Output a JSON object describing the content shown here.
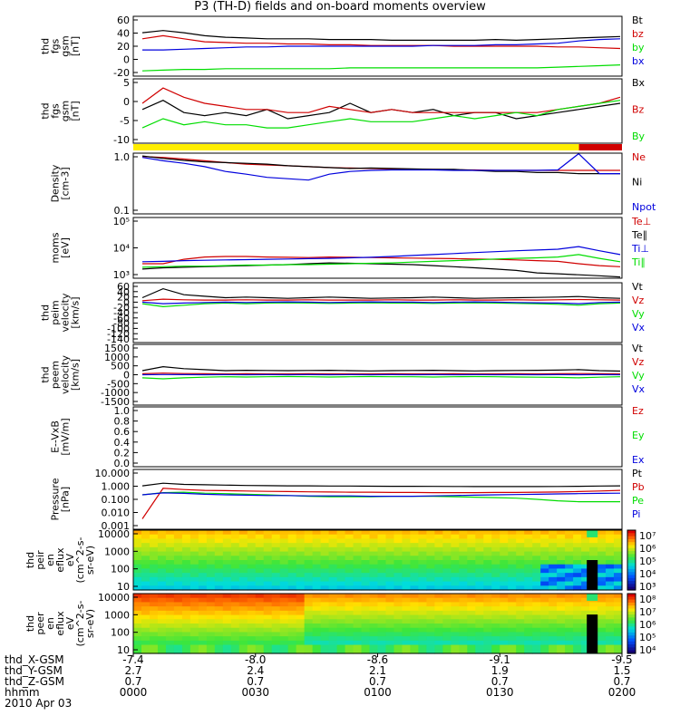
{
  "title": "P3 (TH-D) fields and on-board moments overview",
  "colors": {
    "black": "#000000",
    "red": "#d00000",
    "green": "#00dd00",
    "blue": "#0000dd",
    "yellow": "#ffee00"
  },
  "chart_data": [
    {
      "type": "line",
      "ylabel": [
        "thd",
        "fgs",
        "gsm",
        "[nT]"
      ],
      "yticks": [
        "60",
        "40",
        "20",
        "0",
        "-20"
      ],
      "ylim": [
        -20,
        60
      ],
      "series": [
        {
          "name": "Bt",
          "color": "black",
          "values": [
            38,
            41,
            38,
            34,
            32,
            31,
            30,
            30,
            30,
            29,
            29,
            29,
            28,
            28,
            28,
            28,
            28,
            29,
            28,
            29,
            30,
            31,
            32,
            33
          ]
        },
        {
          "name": "bz",
          "color": "red",
          "values": [
            30,
            34,
            30,
            26,
            25,
            24,
            24,
            23,
            23,
            22,
            22,
            21,
            21,
            21,
            21,
            20,
            20,
            20,
            20,
            20,
            19,
            19,
            18,
            17
          ]
        },
        {
          "name": "by",
          "color": "green",
          "values": [
            -13,
            -12,
            -11,
            -11,
            -10,
            -10,
            -10,
            -10,
            -10,
            -10,
            -9,
            -9,
            -9,
            -9,
            -9,
            -9,
            -9,
            -9,
            -9,
            -9,
            -8,
            -7,
            -6,
            -5
          ]
        },
        {
          "name": "bx",
          "color": "blue",
          "values": [
            15,
            15,
            16,
            17,
            18,
            19,
            19,
            20,
            20,
            20,
            20,
            20,
            20,
            20,
            21,
            21,
            21,
            22,
            22,
            23,
            24,
            27,
            29,
            30
          ]
        }
      ]
    },
    {
      "type": "line",
      "ylabel": [
        "thd",
        "fgs",
        "gsm",
        "[nT]"
      ],
      "yticks": [
        "5",
        "0",
        "-5",
        "-10"
      ],
      "ylim": [
        -13,
        8
      ],
      "series": [
        {
          "name": "Bx",
          "color": "black",
          "values": [
            -2,
            1,
            -3,
            -4,
            -3,
            -4,
            -2,
            -5,
            -4,
            -3,
            0,
            -3,
            -2,
            -3,
            -2,
            -4,
            -3,
            -3,
            -5,
            -4,
            -3,
            -2,
            -1,
            0
          ]
        },
        {
          "name": "Bz",
          "color": "red",
          "values": [
            0,
            5,
            2,
            0,
            -1,
            -2,
            -2,
            -3,
            -3,
            -1,
            -2,
            -3,
            -2,
            -3,
            -3,
            -3,
            -3,
            -3,
            -3,
            -3,
            -2,
            -1,
            0,
            2
          ]
        },
        {
          "name": "By",
          "color": "green",
          "values": [
            -8,
            -5,
            -7,
            -6,
            -7,
            -7,
            -8,
            -8,
            -7,
            -6,
            -5,
            -6,
            -6,
            -6,
            -5,
            -4,
            -5,
            -4,
            -3,
            -4,
            -2,
            -1,
            0,
            1
          ]
        }
      ]
    },
    {
      "type": "line",
      "ylabel": [
        "Density",
        "[cm-3]"
      ],
      "yticks": [
        "1.0",
        "0.1"
      ],
      "ylim": [
        0.1,
        1.0
      ],
      "ylog": true,
      "series": [
        {
          "name": "Ne",
          "color": "red",
          "values": [
            0.88,
            0.85,
            0.8,
            0.75,
            0.7,
            0.66,
            0.64,
            0.62,
            0.6,
            0.58,
            0.57,
            0.56,
            0.55,
            0.54,
            0.54,
            0.53,
            0.53,
            0.52,
            0.52,
            0.52,
            0.52,
            0.52,
            0.52,
            0.52
          ]
        },
        {
          "name": "Ni",
          "color": "black",
          "values": [
            0.9,
            0.82,
            0.76,
            0.72,
            0.7,
            0.68,
            0.66,
            0.62,
            0.6,
            0.58,
            0.56,
            0.57,
            0.56,
            0.55,
            0.54,
            0.54,
            0.52,
            0.5,
            0.5,
            0.48,
            0.48,
            0.46,
            0.46,
            0.46
          ]
        },
        {
          "name": "Npot",
          "color": "blue",
          "values": [
            0.85,
            0.75,
            0.68,
            0.6,
            0.5,
            0.45,
            0.4,
            0.38,
            0.36,
            0.45,
            0.5,
            0.52,
            0.53,
            0.53,
            0.53,
            0.52,
            0.52,
            0.52,
            0.52,
            0.52,
            0.53,
            0.98,
            0.46,
            0.46
          ]
        }
      ]
    },
    {
      "type": "line",
      "ylabel": [
        "moms",
        "[eV]"
      ],
      "yticks": [
        "10⁵",
        "10⁴",
        "10³"
      ],
      "ylim": [
        1000,
        100000
      ],
      "ylog": true,
      "series": [
        {
          "name": "Te⊥",
          "color": "red",
          "values": [
            3000,
            3000,
            4200,
            5000,
            5200,
            5200,
            5000,
            4900,
            4800,
            5000,
            4900,
            4800,
            4700,
            4600,
            4500,
            4400,
            4300,
            4200,
            4000,
            3800,
            3600,
            3000,
            2600,
            2400
          ]
        },
        {
          "name": "Te∥",
          "color": "black",
          "values": [
            2000,
            2200,
            2300,
            2400,
            2500,
            2600,
            2700,
            2800,
            3000,
            3200,
            3100,
            3000,
            2900,
            2800,
            2600,
            2400,
            2200,
            2000,
            1800,
            1500,
            1400,
            1300,
            1200,
            1100
          ]
        },
        {
          "name": "Ti⊥",
          "color": "blue",
          "values": [
            3500,
            3600,
            3800,
            3900,
            4000,
            4100,
            4200,
            4300,
            4400,
            4500,
            4700,
            4900,
            5200,
            5600,
            6000,
            6500,
            7000,
            7500,
            8000,
            8500,
            9000,
            11000,
            8000,
            6000
          ]
        },
        {
          "name": "Ti∥",
          "color": "green",
          "values": [
            2300,
            2400,
            2500,
            2500,
            2600,
            2700,
            2700,
            2800,
            2800,
            2900,
            3000,
            3100,
            3200,
            3400,
            3600,
            3800,
            4000,
            4300,
            4500,
            4700,
            5000,
            6000,
            4500,
            3500
          ]
        }
      ]
    },
    {
      "type": "line",
      "ylabel": [
        "thd",
        "peim",
        "velocity",
        "[km/s]"
      ],
      "yticks": [
        "60",
        "40",
        "20",
        "0",
        "-20",
        "-40",
        "-60",
        "-80",
        "-100",
        "-120",
        "-140"
      ],
      "ylim": [
        -140,
        60
      ],
      "series": [
        {
          "name": "Vt",
          "color": "black",
          "values": [
            10,
            40,
            20,
            15,
            10,
            12,
            10,
            8,
            10,
            12,
            10,
            8,
            9,
            10,
            12,
            10,
            8,
            9,
            10,
            11,
            12,
            14,
            10,
            8
          ]
        },
        {
          "name": "Vz",
          "color": "red",
          "values": [
            0,
            5,
            3,
            2,
            2,
            3,
            2,
            2,
            3,
            2,
            2,
            2,
            3,
            2,
            2,
            3,
            2,
            2,
            3,
            2,
            3,
            4,
            3,
            2
          ]
        },
        {
          "name": "Vy",
          "color": "green",
          "values": [
            -10,
            -20,
            -15,
            -10,
            -8,
            -10,
            -8,
            -7,
            -8,
            -9,
            -8,
            -7,
            -8,
            -8,
            -9,
            -8,
            -7,
            -8,
            -9,
            -10,
            -12,
            -15,
            -10,
            -8
          ]
        },
        {
          "name": "Vx",
          "color": "blue",
          "values": [
            -5,
            -10,
            -8,
            -6,
            -5,
            -6,
            -5,
            -4,
            -5,
            -6,
            -5,
            -4,
            -5,
            -5,
            -6,
            -5,
            -4,
            -5,
            -6,
            -7,
            -8,
            -10,
            -6,
            -5
          ]
        }
      ]
    },
    {
      "type": "line",
      "ylabel": [
        "thd",
        "peem",
        "velocity",
        "[km/s]"
      ],
      "yticks": [
        "1500",
        "1000",
        "500",
        "0",
        "-500",
        "-1000",
        "-1500"
      ],
      "ylim": [
        -1500,
        1500
      ],
      "series": [
        {
          "name": "Vt",
          "color": "black",
          "values": [
            200,
            400,
            300,
            250,
            200,
            220,
            210,
            200,
            210,
            220,
            200,
            190,
            200,
            210,
            220,
            200,
            190,
            200,
            210,
            220,
            230,
            250,
            200,
            180
          ]
        },
        {
          "name": "Vz",
          "color": "red",
          "values": [
            50,
            80,
            60,
            50,
            40,
            50,
            40,
            40,
            50,
            40,
            40,
            40,
            50,
            40,
            40,
            50,
            40,
            40,
            50,
            40,
            50,
            60,
            50,
            40
          ]
        },
        {
          "name": "Vy",
          "color": "green",
          "values": [
            -150,
            -200,
            -150,
            -120,
            -100,
            -110,
            -100,
            -90,
            -100,
            -110,
            -100,
            -90,
            -100,
            -100,
            -110,
            -100,
            -90,
            -100,
            -110,
            -120,
            -130,
            -150,
            -120,
            -100
          ]
        },
        {
          "name": "Vx",
          "color": "blue",
          "values": [
            0,
            10,
            5,
            0,
            5,
            0,
            5,
            0,
            5,
            0,
            5,
            0,
            5,
            0,
            5,
            0,
            5,
            0,
            5,
            0,
            5,
            0,
            5,
            0
          ]
        }
      ]
    },
    {
      "type": "line",
      "ylabel": [
        "E--VxB",
        "[mV/m]"
      ],
      "yticks": [
        "1.0",
        "0.8",
        "0.6",
        "0.4",
        "0.2",
        "0.0"
      ],
      "ylim": [
        0,
        1
      ],
      "series": [
        {
          "name": "Ez",
          "color": "red",
          "values": []
        },
        {
          "name": "Ey",
          "color": "green",
          "values": []
        },
        {
          "name": "Ex",
          "color": "blue",
          "values": []
        }
      ]
    },
    {
      "type": "line",
      "ylabel": [
        "Pressure",
        "[nPa]"
      ],
      "yticks": [
        "10.000",
        "1.000",
        "0.100",
        "0.010",
        "0.001"
      ],
      "ylim": [
        0.001,
        10
      ],
      "ylog": true,
      "series": [
        {
          "name": "Pt",
          "color": "black",
          "values": [
            0.8,
            1.2,
            1.0,
            0.95,
            0.9,
            0.85,
            0.82,
            0.8,
            0.8,
            0.78,
            0.78,
            0.76,
            0.75,
            0.75,
            0.74,
            0.73,
            0.72,
            0.72,
            0.72,
            0.72,
            0.73,
            0.75,
            0.78,
            0.8
          ]
        },
        {
          "name": "Pb",
          "color": "red",
          "values": [
            0.005,
            0.55,
            0.45,
            0.4,
            0.38,
            0.36,
            0.34,
            0.33,
            0.32,
            0.31,
            0.3,
            0.3,
            0.29,
            0.29,
            0.28,
            0.28,
            0.28,
            0.29,
            0.29,
            0.3,
            0.31,
            0.33,
            0.36,
            0.4
          ]
        },
        {
          "name": "Pe",
          "color": "green",
          "values": [
            0.2,
            0.28,
            0.3,
            0.26,
            0.24,
            0.22,
            0.2,
            0.18,
            0.16,
            0.15,
            0.15,
            0.15,
            0.16,
            0.16,
            0.16,
            0.15,
            0.14,
            0.13,
            0.12,
            0.1,
            0.08,
            0.07,
            0.07,
            0.07
          ]
        },
        {
          "name": "Pi",
          "color": "blue",
          "values": [
            0.2,
            0.27,
            0.25,
            0.22,
            0.2,
            0.19,
            0.18,
            0.18,
            0.17,
            0.17,
            0.17,
            0.16,
            0.16,
            0.16,
            0.17,
            0.18,
            0.19,
            0.2,
            0.21,
            0.22,
            0.23,
            0.24,
            0.25,
            0.26
          ]
        }
      ]
    },
    {
      "type": "heatmap",
      "ylabel": [
        "thd",
        "peir",
        "en",
        "eflux",
        "eV",
        "(cm^2-s-",
        "sr-eV)"
      ],
      "yticks": [
        "10000",
        "1000",
        "100",
        "10"
      ],
      "ylog": true,
      "colorbar_ticks": [
        "10⁷",
        "10⁶",
        "10⁵",
        "10⁴",
        "10³"
      ]
    },
    {
      "type": "heatmap",
      "ylabel": [
        "thd",
        "peer",
        "en",
        "eflux",
        "eV",
        "(cm^2-s-",
        "sr-eV)"
      ],
      "yticks": [
        "10000",
        "1000",
        "100",
        "10"
      ],
      "ylog": true,
      "colorbar_ticks": [
        "10⁸",
        "10⁷",
        "10⁶",
        "10⁵",
        "10⁴"
      ]
    }
  ],
  "x_axis": {
    "row_labels": [
      "thd_X-GSM",
      "thd_Y-GSM",
      "thd_Z-GSM",
      "hhmm",
      "2010 Apr 03"
    ],
    "ticks": [
      {
        "x": "-7.4",
        "y": "2.7",
        "z": "0.7",
        "t": "0000"
      },
      {
        "x": "-8.0",
        "y": "2.4",
        "z": "0.7",
        "t": "0030"
      },
      {
        "x": "-8.6",
        "y": "2.1",
        "z": "0.7",
        "t": "0100"
      },
      {
        "x": "-9.1",
        "y": "1.9",
        "z": "0.7",
        "t": "0130"
      },
      {
        "x": "-9.5",
        "y": "1.5",
        "z": "0.7",
        "t": "0200"
      }
    ]
  }
}
